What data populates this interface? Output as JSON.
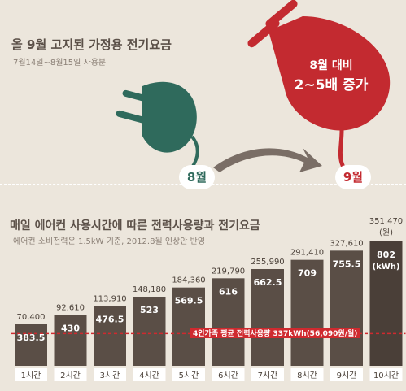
{
  "header": {
    "title": "올 9월 고지된 가정용 전기요금",
    "subtitle": "7월14일~8월15일 사용분"
  },
  "callout": {
    "line1": "8월 대비",
    "line2": "2~5배 증가",
    "month_from": "8월",
    "month_to": "9월"
  },
  "chart_data": {
    "type": "bar",
    "title": "매일 에어컨 사용시간에 따른 전력사용량과 전기요금",
    "subtitle": "에어컨 소비전력은 1.5kW 기준, 2012.8월 인상안 반영",
    "categories": [
      "1시간",
      "2시간",
      "3시간",
      "4시간",
      "5시간",
      "6시간",
      "7시간",
      "8시간",
      "9시간",
      "10시간"
    ],
    "series": [
      {
        "values": [
          383.5,
          430,
          476.5,
          523,
          569.5,
          616,
          662.5,
          709,
          755.5,
          802
        ]
      }
    ],
    "value_labels": [
      "383.5",
      "430",
      "476.5",
      "523",
      "569.5",
      "616",
      "662.5",
      "709",
      "755.5",
      "802"
    ],
    "top_labels": [
      "70,400",
      "92,610",
      "113,910",
      "148,180",
      "184,360",
      "219,790",
      "255,990",
      "291,410",
      "327,610",
      "351,470"
    ],
    "unit_fee": "(원)",
    "unit_power": "(kWh)",
    "reference_value": 337,
    "reference_label": "4인가족 평균 전력사용량 337kWh(56,090원/월)",
    "colors": {
      "bar": "#5a4e46",
      "bar_last": "#4a3f38",
      "reference": "#cf2a2f",
      "label_bg": "#ffffff"
    }
  }
}
